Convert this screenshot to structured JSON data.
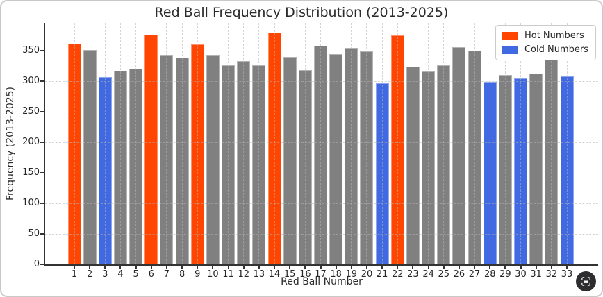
{
  "chart_data": {
    "type": "bar",
    "title": "Red Ball Frequency Distribution (2013-2025)",
    "xlabel": "Red Ball Number",
    "ylabel": "Frequency (2013-2025)",
    "categories": [
      1,
      2,
      3,
      4,
      5,
      6,
      7,
      8,
      9,
      10,
      11,
      12,
      13,
      14,
      15,
      16,
      17,
      18,
      19,
      20,
      21,
      22,
      23,
      24,
      25,
      26,
      27,
      28,
      29,
      30,
      31,
      32,
      33
    ],
    "values": [
      362,
      352,
      307,
      318,
      321,
      377,
      344,
      339,
      361,
      344,
      327,
      333,
      327,
      380,
      340,
      319,
      359,
      345,
      355,
      349,
      297,
      375,
      324,
      316,
      327,
      356,
      351,
      299,
      311,
      305,
      313,
      345,
      308
    ],
    "hot_numbers": [
      1,
      6,
      9,
      14,
      22
    ],
    "cold_numbers": [
      3,
      21,
      28,
      30,
      33
    ],
    "colors": {
      "hot": "#FF4500",
      "cold": "#4169E1",
      "default": "#808080"
    },
    "legend": {
      "position": "upper right",
      "entries": [
        {
          "label": "Hot Numbers",
          "color": "#FF4500"
        },
        {
          "label": "Cold Numbers",
          "color": "#4169E1"
        }
      ]
    },
    "yticks": [
      0,
      50,
      100,
      150,
      200,
      250,
      300,
      350
    ],
    "ylim": [
      0,
      396
    ],
    "grid": {
      "style": "dashed",
      "x": true,
      "y": true,
      "over_bars": true
    }
  },
  "overlay": {
    "fab_icon": "scan-icon"
  }
}
